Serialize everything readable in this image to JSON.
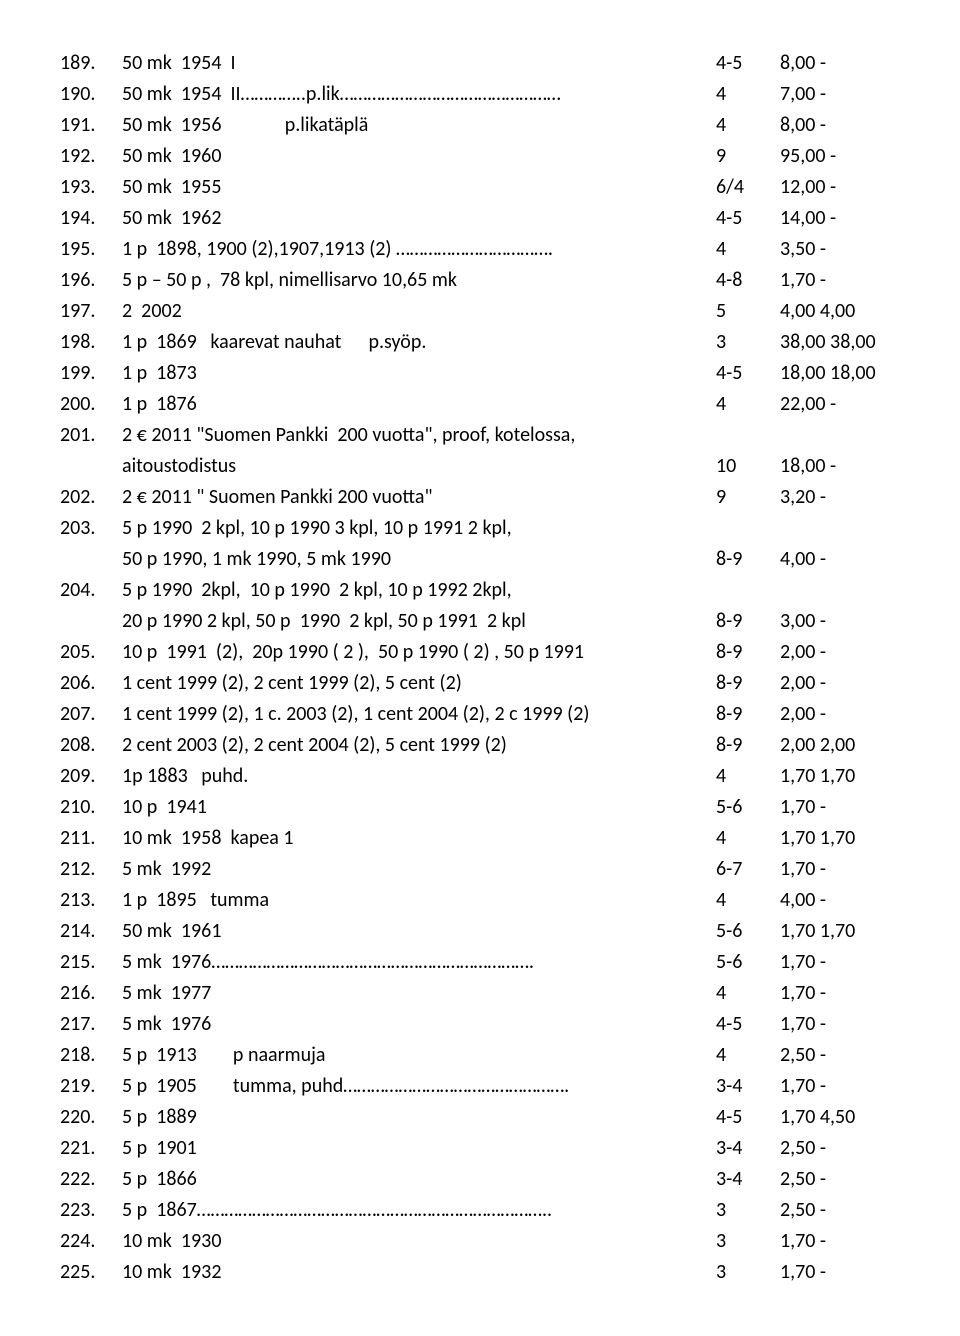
{
  "rows": [
    {
      "n": "189.",
      "d": "50 mk  1954  I",
      "g": "4-5",
      "p": "8,00 -"
    },
    {
      "n": "190.",
      "d": "50 mk  1954  II…………..p.lik…………………………………………",
      "g": "4",
      "p": "7,00 -"
    },
    {
      "n": "191.",
      "d": "50 mk  1956              p.likatäplä",
      "g": "4",
      "p": "8,00 -"
    },
    {
      "n": "192.",
      "d": "50 mk  1960",
      "g": "9",
      "p": "95,00 -"
    },
    {
      "n": "193.",
      "d": "50 mk  1955",
      "g": "6/4",
      "p": "12,00 -"
    },
    {
      "n": "194.",
      "d": "50 mk  1962",
      "g": "4-5",
      "p": "14,00 -"
    },
    {
      "n": "195.",
      "d": "1 p  1898, 1900 (2),1907,1913 (2) …………………………….",
      "g": "4",
      "p": "3,50 -"
    },
    {
      "n": "196.",
      "d": "5 p – 50 p ,  78 kpl, nimellisarvo 10,65 mk",
      "g": "4-8",
      "p": "1,70 -"
    },
    {
      "n": "197.",
      "d": "2  2002",
      "g": "5",
      "p": "4,00 4,00"
    },
    {
      "n": "198.",
      "d": "1 p  1869   kaarevat nauhat      p.syöp.",
      "g": "3",
      "p": "38,00 38,00"
    },
    {
      "n": "199.",
      "d": "1 p  1873",
      "g": "4-5",
      "p": "18,00 18,00"
    },
    {
      "n": "200.",
      "d": "1 p  1876",
      "g": "4",
      "p": "22,00 -"
    },
    {
      "n": "201.",
      "d": "2 € 2011 \"Suomen Pankki  200 vuotta\", proof, kotelossa,",
      "g": "",
      "p": "",
      "cont": [
        {
          "d": "aitoustodistus",
          "g": "10",
          "p": "18,00 -"
        }
      ]
    },
    {
      "n": "202.",
      "d": "2 € 2011 \" Suomen Pankki 200 vuotta\"",
      "g": "9",
      "p": "3,20 -"
    },
    {
      "n": "203.",
      "d": "5 p 1990  2 kpl, 10 p 1990 3 kpl, 10 p 1991 2 kpl,",
      "g": "",
      "p": "",
      "cont": [
        {
          "d": "50 p 1990, 1 mk 1990, 5 mk 1990",
          "g": "8-9",
          "p": "4,00 -"
        }
      ]
    },
    {
      "n": "204.",
      "d": "5 p 1990  2kpl,  10 p 1990  2 kpl, 10 p 1992 2kpl,",
      "g": "",
      "p": "",
      "cont": [
        {
          "d": "20 p 1990 2 kpl, 50 p  1990  2 kpl, 50 p 1991  2 kpl",
          "g": "8-9",
          "p": "3,00 -"
        }
      ]
    },
    {
      "n": "205.",
      "d": "10 p  1991  (2),  20p 1990 ( 2 ),  50 p 1990 ( 2) , 50 p 1991",
      "g": "8-9",
      "p": "2,00 -"
    },
    {
      "n": "206.",
      "d": "1 cent 1999 (2), 2 cent 1999 (2), 5 cent (2)",
      "g": "8-9",
      "p": "2,00 -"
    },
    {
      "n": "207.",
      "d": "1 cent 1999 (2), 1 c. 2003 (2), 1 cent 2004 (2), 2 c 1999 (2)",
      "g": "8-9",
      "p": "2,00 -"
    },
    {
      "n": "208.",
      "d": "2 cent 2003 (2), 2 cent 2004 (2), 5 cent 1999 (2)",
      "g": "8-9",
      "p": "2,00 2,00"
    },
    {
      "n": "209.",
      "d": "1p 1883   puhd.",
      "g": "4",
      "p": "1,70 1,70"
    },
    {
      "n": "210.",
      "d": "10 p  1941",
      "g": "5-6",
      "p": "1,70 -"
    },
    {
      "n": "211.",
      "d": "10 mk  1958  kapea 1",
      "g": "4",
      "p": "1,70 1,70"
    },
    {
      "n": "212.",
      "d": "5 mk  1992",
      "g": "6-7",
      "p": "1,70 -"
    },
    {
      "n": "213.",
      "d": "1 p  1895   tumma",
      "g": "4",
      "p": "4,00 -"
    },
    {
      "n": "214.",
      "d": "50 mk  1961",
      "g": "5-6",
      "p": "1,70 1,70"
    },
    {
      "n": "215.",
      "d": "5 mk  1976…………………………………………………………….",
      "g": "5-6",
      "p": "1,70 -"
    },
    {
      "n": "216.",
      "d": "5 mk  1977",
      "g": "4",
      "p": "1,70 -"
    },
    {
      "n": "217.",
      "d": "5 mk  1976",
      "g": "4-5",
      "p": "1,70 -"
    },
    {
      "n": "218.",
      "d": "5 p  1913        p naarmuja",
      "g": "4",
      "p": "2,50 -"
    },
    {
      "n": "219.",
      "d": "5 p  1905        tumma, puhd………………………………………….",
      "g": "3-4",
      "p": "1,70 -"
    },
    {
      "n": "220.",
      "d": "5 p  1889",
      "g": "4-5",
      "p": "1,70 4,50"
    },
    {
      "n": "221.",
      "d": "5 p  1901",
      "g": "3-4",
      "p": "2,50 -"
    },
    {
      "n": "222.",
      "d": "5 p  1866",
      "g": "3-4",
      "p": "2,50 -"
    },
    {
      "n": "223.",
      "d": "5 p  1867…………………………………………………………………..",
      "g": "3",
      "p": "2,50 -"
    },
    {
      "n": "224.",
      "d": "10 mk  1930",
      "g": "3",
      "p": "1,70 -"
    },
    {
      "n": "225.",
      "d": "10 mk  1932",
      "g": "3",
      "p": "1,70 -"
    }
  ]
}
